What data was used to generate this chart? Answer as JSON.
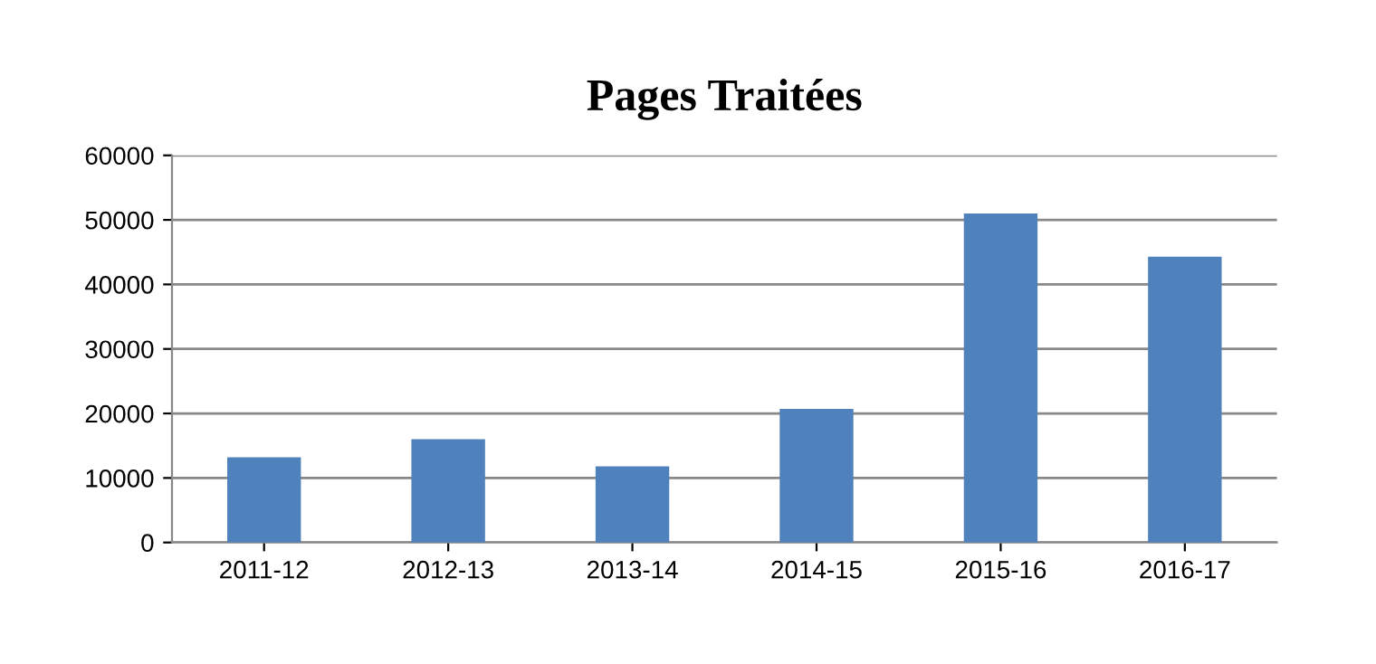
{
  "chart_data": {
    "type": "bar",
    "title": "Pages Traitées",
    "categories": [
      "2011-12",
      "2012-13",
      "2013-14",
      "2014-15",
      "2015-16",
      "2016-17"
    ],
    "values": [
      13200,
      16000,
      11800,
      20700,
      51000,
      44300
    ],
    "color": "#4f81bd",
    "ylim": [
      0,
      60000
    ],
    "yticks": [
      0,
      10000,
      20000,
      30000,
      40000,
      50000,
      60000
    ],
    "grid": "y"
  }
}
